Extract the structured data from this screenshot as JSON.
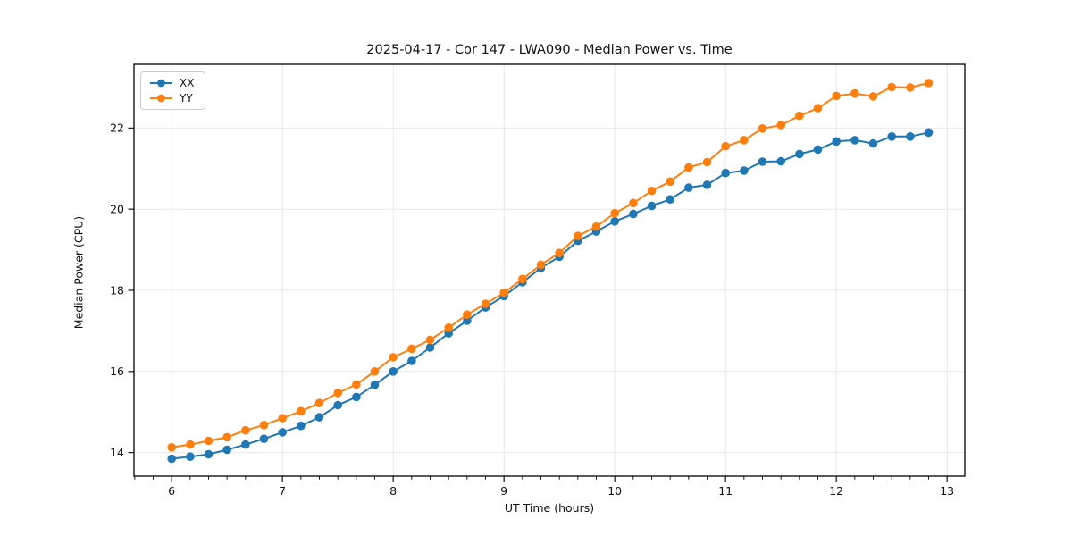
{
  "chart_data": {
    "type": "line",
    "title": "2025-04-17 - Cor 147 - LWA090 - Median Power vs. Time",
    "xlabel": "UT Time (hours)",
    "ylabel": "Median Power (CPU)",
    "xlim": [
      5.66,
      13.16
    ],
    "ylim": [
      13.42,
      23.57
    ],
    "x_major_ticks": [
      6,
      7,
      8,
      9,
      10,
      11,
      12,
      13
    ],
    "y_major_ticks": [
      14,
      16,
      18,
      20,
      22
    ],
    "x_minor_step": 0.1666667,
    "grid": true,
    "grid_color": "#e5e5e5",
    "legend_position": "upper-left",
    "x": [
      6.0,
      6.167,
      6.333,
      6.5,
      6.667,
      6.833,
      7.0,
      7.167,
      7.333,
      7.5,
      7.667,
      7.833,
      8.0,
      8.167,
      8.333,
      8.5,
      8.667,
      8.833,
      9.0,
      9.167,
      9.333,
      9.5,
      9.667,
      9.833,
      10.0,
      10.167,
      10.333,
      10.5,
      10.667,
      10.833,
      11.0,
      11.167,
      11.333,
      11.5,
      11.667,
      11.833,
      12.0,
      12.167,
      12.333,
      12.5,
      12.667,
      12.833
    ],
    "series": [
      {
        "name": "XX",
        "color": "#1f77b4",
        "values": [
          13.85,
          13.9,
          13.96,
          14.07,
          14.2,
          14.34,
          14.5,
          14.66,
          14.87,
          15.17,
          15.37,
          15.67,
          16.0,
          16.26,
          16.59,
          16.94,
          17.25,
          17.58,
          17.86,
          18.2,
          18.55,
          18.83,
          19.22,
          19.45,
          19.7,
          19.88,
          20.08,
          20.24,
          20.53,
          20.6,
          20.89,
          20.95,
          21.17,
          21.18,
          21.36,
          21.47,
          21.67,
          21.7,
          21.62,
          21.79,
          21.79,
          21.89
        ]
      },
      {
        "name": "YY",
        "color": "#ff7f0e",
        "values": [
          14.13,
          14.2,
          14.29,
          14.38,
          14.55,
          14.68,
          14.85,
          15.02,
          15.22,
          15.47,
          15.68,
          16.0,
          16.35,
          16.56,
          16.78,
          17.08,
          17.4,
          17.67,
          17.94,
          18.28,
          18.63,
          18.92,
          19.34,
          19.57,
          19.9,
          20.15,
          20.45,
          20.68,
          21.03,
          21.16,
          21.55,
          21.7,
          21.99,
          22.07,
          22.3,
          22.49,
          22.79,
          22.85,
          22.78,
          23.01,
          23.0,
          23.11
        ]
      }
    ]
  }
}
